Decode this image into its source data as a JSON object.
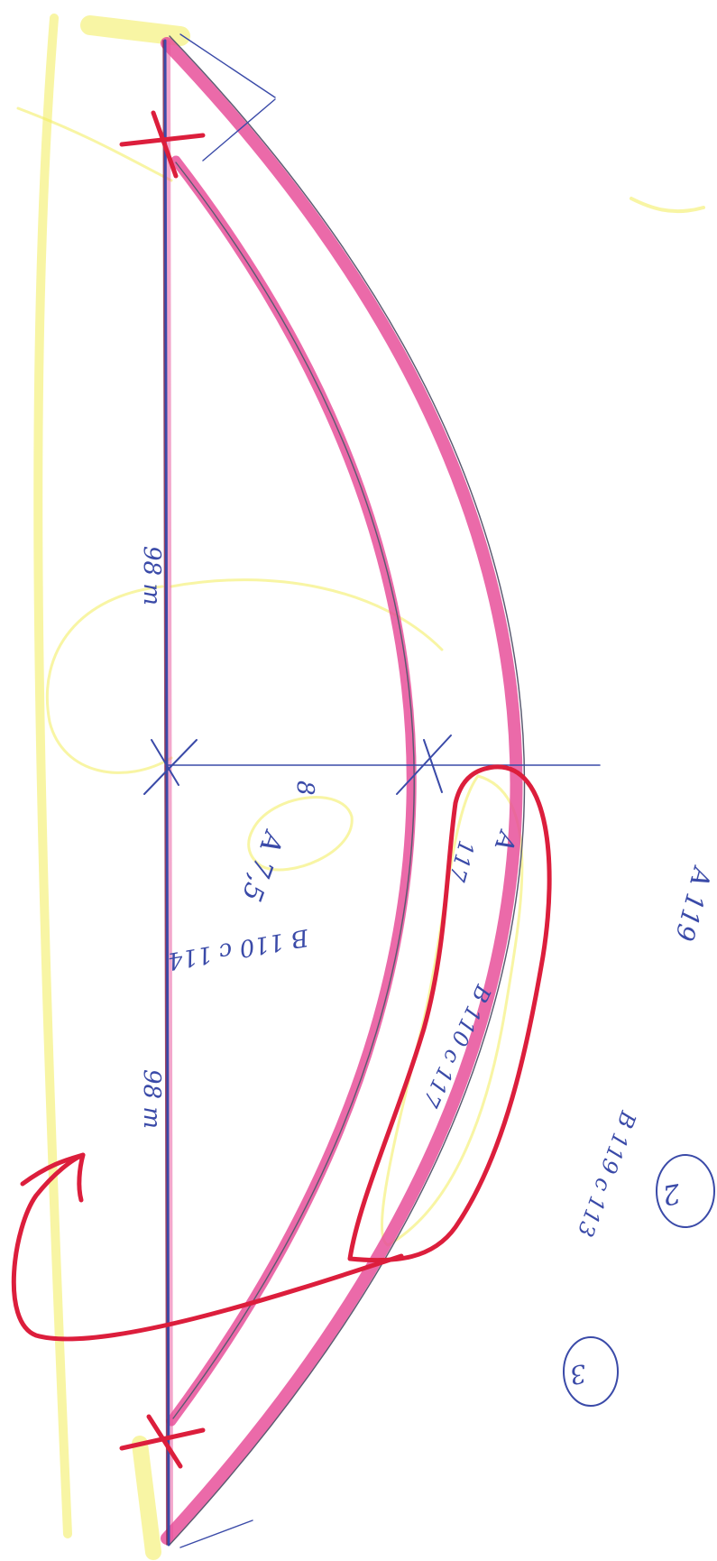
{
  "colors": {
    "paper": "#ffffff",
    "ink_blue": "#3a4aa8",
    "pencil": "#5a5a70",
    "marker_pink": "#e8509a",
    "marker_red": "#dc1e3c",
    "highlighter_yellow": "#f2ec5a"
  },
  "sketch": {
    "dimension_upper": "98 m",
    "dimension_lower": "98 m",
    "dimension_radius": "8",
    "note_main": "A 7,5",
    "note_inner_strip": "B 110 c 117",
    "note_inner_a": "A",
    "note_inner_b": "117",
    "note_middle": "B 110 c 114",
    "note_outer_strip": "B 119 c 113",
    "note_outer_a": "A 119",
    "circled_2": "2",
    "circled_3": "3"
  }
}
